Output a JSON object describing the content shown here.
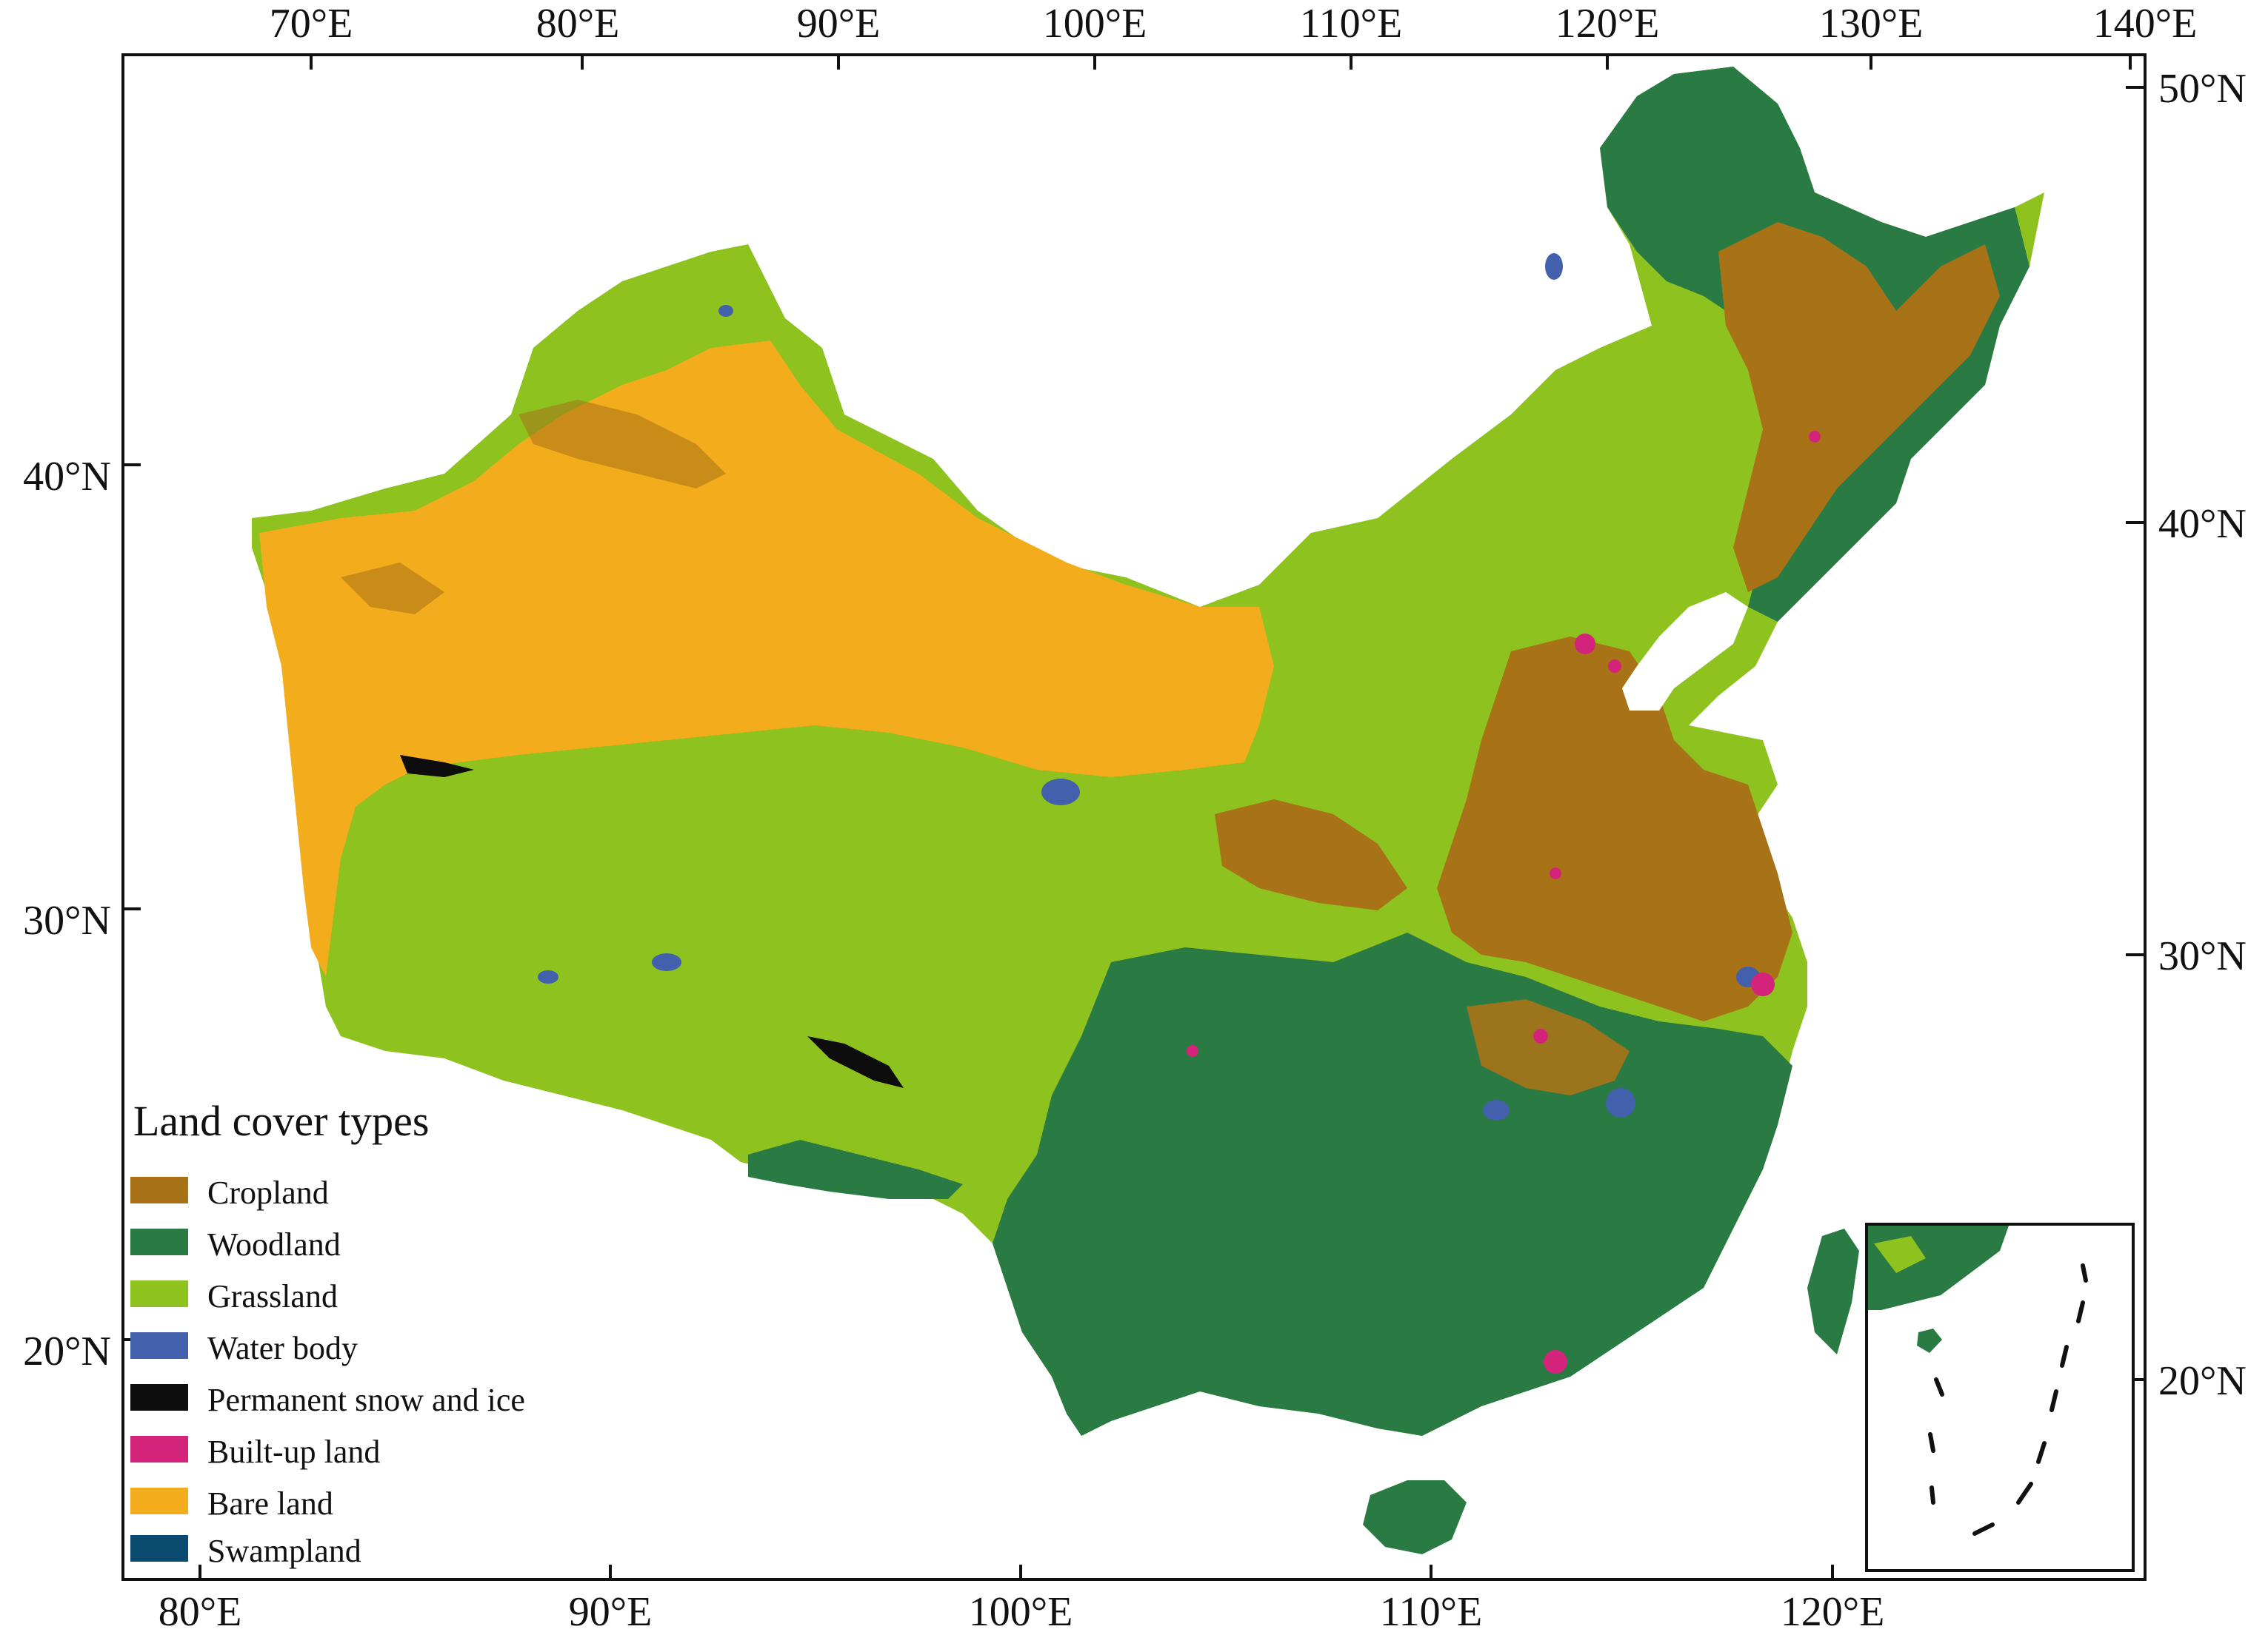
{
  "map": {
    "top_axis_labels": [
      "70°E",
      "80°E",
      "90°E",
      "100°E",
      "110°E",
      "120°E",
      "130°E",
      "140°E"
    ],
    "right_axis_labels": [
      "50°N",
      "40°N",
      "30°N",
      "20°N"
    ],
    "bottom_axis_labels": [
      "80°E",
      "90°E",
      "100°E",
      "110°E",
      "120°E"
    ],
    "left_axis_labels": [
      "40°N",
      "30°N",
      "20°N"
    ]
  },
  "legend": {
    "title": "Land cover types",
    "items": [
      {
        "label": "Cropland",
        "color": "#a87317"
      },
      {
        "label": "Woodland",
        "color": "#2a7a44"
      },
      {
        "label": "Grassland",
        "color": "#8dc21f"
      },
      {
        "label": "Water body",
        "color": "#4360ad"
      },
      {
        "label": "Permanent snow and ice",
        "color": "#0d0d0d"
      },
      {
        "label": "Built-up land",
        "color": "#d4237a"
      },
      {
        "label": "Bare land",
        "color": "#f3ac1b"
      },
      {
        "label": "Swampland",
        "color": "#0a4a6e"
      }
    ]
  },
  "colors": {
    "cropland": "#a87317",
    "woodland": "#2a7a44",
    "grassland": "#8dc21f",
    "water_body": "#4360ad",
    "snow_ice": "#0d0d0d",
    "built_up": "#d4237a",
    "bare_land": "#f3ac1b",
    "swampland": "#0a4a6e"
  }
}
